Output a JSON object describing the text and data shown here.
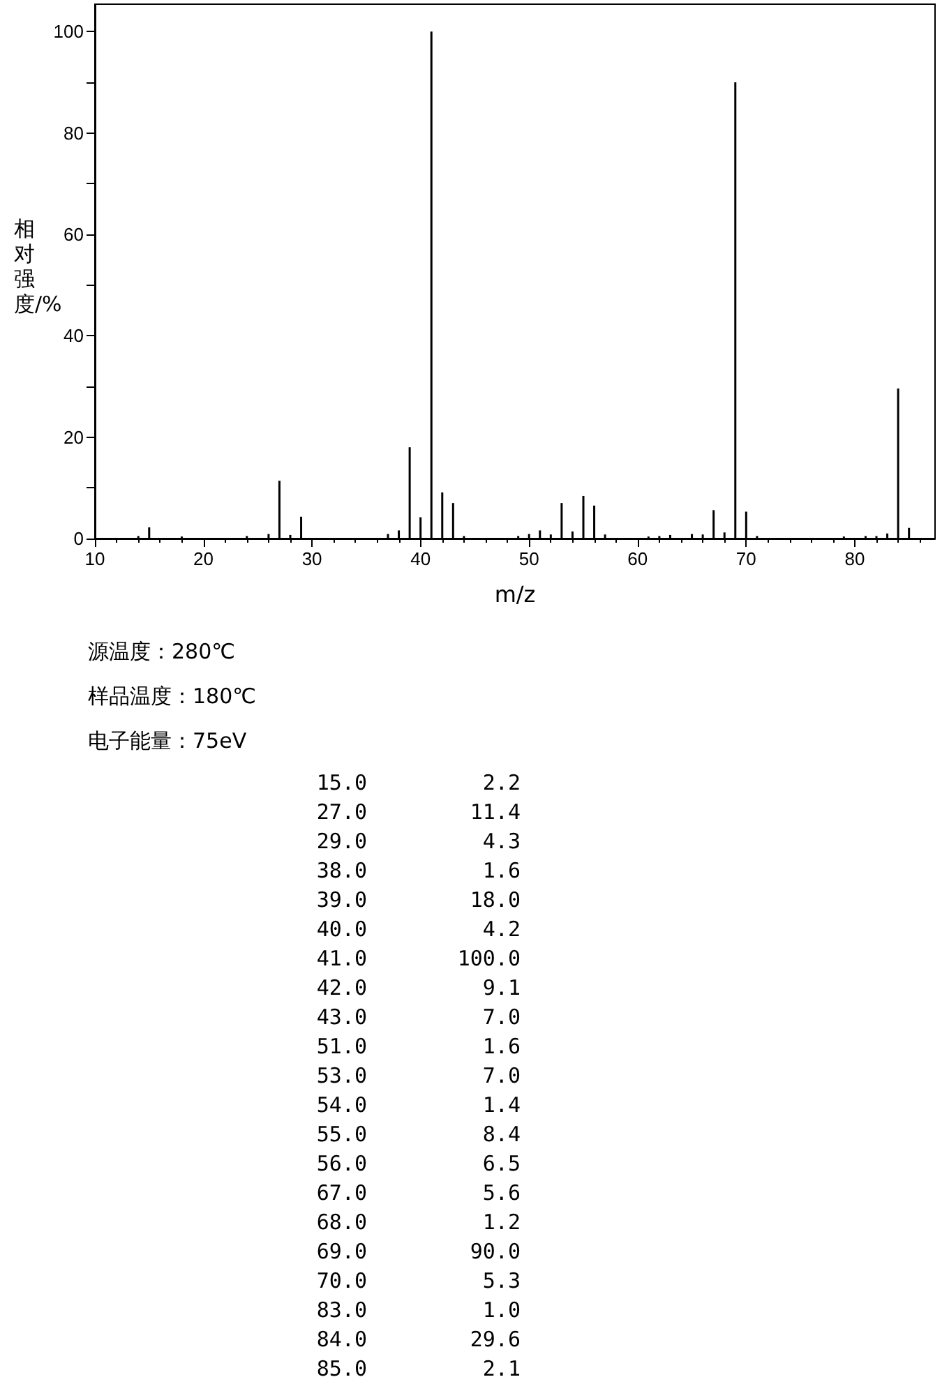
{
  "chart_data": {
    "type": "bar",
    "xlabel": "m/z",
    "ylabel": "相对强度/%",
    "x": [
      14,
      15,
      18,
      24,
      26,
      27,
      28,
      29,
      37,
      38,
      39,
      40,
      41,
      42,
      43,
      44,
      49,
      50,
      51,
      52,
      53,
      54,
      55,
      56,
      57,
      61,
      62,
      63,
      65,
      66,
      67,
      68,
      69,
      70,
      71,
      79,
      81,
      82,
      83,
      84,
      85
    ],
    "values": [
      0.5,
      2.2,
      0.4,
      0.5,
      0.9,
      11.4,
      0.7,
      4.3,
      0.9,
      1.6,
      18.0,
      4.2,
      100.0,
      9.1,
      7.0,
      0.5,
      0.5,
      0.9,
      1.6,
      0.8,
      7.0,
      1.4,
      8.4,
      6.5,
      0.8,
      0.4,
      0.5,
      0.7,
      0.9,
      0.8,
      5.6,
      1.2,
      90.0,
      5.3,
      0.5,
      0.4,
      0.5,
      0.5,
      1.0,
      29.6,
      2.1
    ],
    "color": "#000000",
    "xlim": [
      10,
      87.4
    ],
    "xticks": [
      10,
      20,
      30,
      40,
      50,
      60,
      70,
      80
    ],
    "ylim": [
      0,
      105.4
    ],
    "yticks": [
      0,
      20,
      40,
      60,
      80,
      100
    ],
    "grid": false,
    "annotations": [
      "源温度：280℃",
      "样品温度：180℃",
      "电子能量：75eV",
      "15.0",
      "2.2",
      "27.0",
      "11.4",
      "29.0",
      "4.3",
      "38.0",
      "1.6",
      "39.0",
      "18.0",
      "40.0",
      "4.2",
      "41.0",
      "100.0",
      "42.0",
      "9.1",
      "43.0",
      "7.0",
      "51.0",
      "1.6",
      "53.0",
      "7.0",
      "54.0",
      "1.4",
      "55.0",
      "8.4",
      "56.0",
      "6.5",
      "67.0",
      "5.6",
      "68.0",
      "1.2",
      "69.0",
      "90.0",
      "70.0",
      "5.3",
      "83.0",
      "1.0",
      "84.0",
      "29.6",
      "85.0",
      "2.1"
    ]
  }
}
